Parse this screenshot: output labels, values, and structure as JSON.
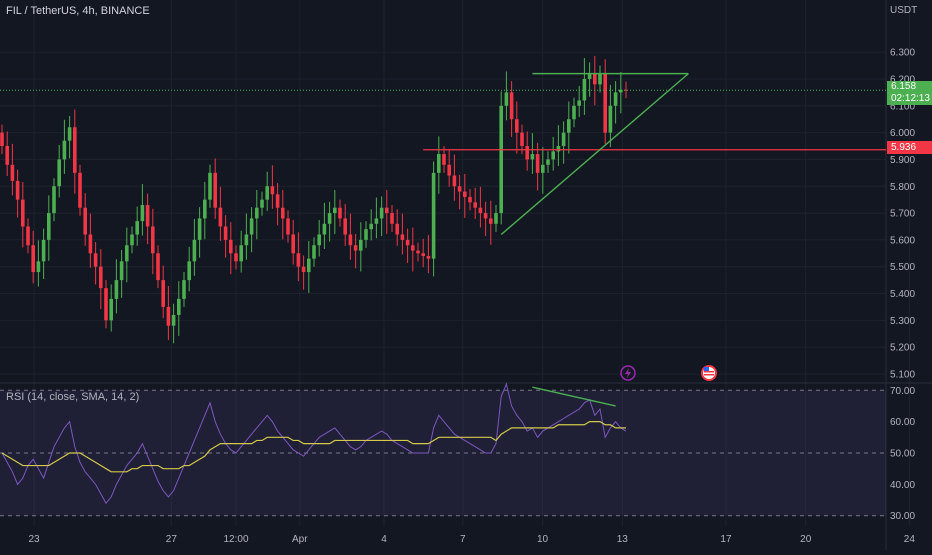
{
  "header": {
    "title": "FIL / TetherUS, 4h, BINANCE",
    "quote_unit": "USDT"
  },
  "price_tags": {
    "last_price": "6.158",
    "countdown": "02:12:13",
    "level_price": "5.936"
  },
  "event_icons": [
    {
      "icon": "lightning-icon",
      "color": "#9c27b0"
    },
    {
      "icon": "us-flag-icon",
      "color": "#f23645"
    }
  ],
  "colors": {
    "background": "#131722",
    "up": "#4caf50",
    "down": "#f23645",
    "rsi_line": "#7e57c2",
    "rsi_ma": "#d4c94a",
    "trendline": "#4caf50",
    "level_line": "#f23645"
  },
  "chart_data": [
    {
      "type": "candlestick",
      "title": "FIL / TetherUS, 4h, BINANCE",
      "ylim": [
        5.07,
        6.42
      ],
      "y_ticks": [
        "6.300",
        "6.200",
        "6.100",
        "6.000",
        "5.900",
        "5.800",
        "5.700",
        "5.600",
        "5.500",
        "5.400",
        "5.300",
        "5.200",
        "5.100"
      ],
      "x_ticks": [
        {
          "label": "23",
          "pos": 0.0
        },
        {
          "label": "27",
          "pos": 0.155
        },
        {
          "label": "12:00",
          "pos": 0.228
        },
        {
          "label": "Apr",
          "pos": 0.3
        },
        {
          "label": "4",
          "pos": 0.395
        },
        {
          "label": "7",
          "pos": 0.484
        },
        {
          "label": "10",
          "pos": 0.574
        },
        {
          "label": "13",
          "pos": 0.664
        },
        {
          "label": "17",
          "pos": 0.781
        },
        {
          "label": "20",
          "pos": 0.871
        },
        {
          "label": "24",
          "pos": 0.988
        }
      ],
      "closes": [
        5.95,
        5.88,
        5.82,
        5.75,
        5.65,
        5.58,
        5.48,
        5.52,
        5.6,
        5.7,
        5.8,
        5.9,
        5.97,
        6.02,
        5.85,
        5.72,
        5.62,
        5.55,
        5.5,
        5.42,
        5.3,
        5.38,
        5.45,
        5.52,
        5.58,
        5.62,
        5.67,
        5.73,
        5.65,
        5.55,
        5.45,
        5.35,
        5.28,
        5.32,
        5.38,
        5.45,
        5.52,
        5.6,
        5.68,
        5.75,
        5.85,
        5.72,
        5.65,
        5.6,
        5.55,
        5.52,
        5.58,
        5.62,
        5.68,
        5.72,
        5.75,
        5.8,
        5.77,
        5.72,
        5.68,
        5.62,
        5.55,
        5.5,
        5.48,
        5.53,
        5.58,
        5.62,
        5.66,
        5.7,
        5.72,
        5.68,
        5.62,
        5.58,
        5.56,
        5.6,
        5.64,
        5.66,
        5.68,
        5.72,
        5.7,
        5.66,
        5.62,
        5.6,
        5.58,
        5.56,
        5.55,
        5.54,
        5.53,
        5.85,
        5.92,
        5.88,
        5.84,
        5.8,
        5.78,
        5.76,
        5.74,
        5.72,
        5.7,
        5.68,
        5.66,
        5.7,
        6.1,
        6.15,
        6.05,
        6.0,
        5.95,
        5.9,
        5.92,
        5.85,
        5.88,
        5.9,
        5.93,
        5.95,
        6.0,
        6.05,
        6.1,
        6.12,
        6.2,
        6.22,
        6.18,
        6.22,
        6.0,
        6.1,
        6.15,
        6.16,
        6.158
      ],
      "last_price": 6.158,
      "horizontal_level": 5.936,
      "rsi": {
        "title": "RSI (14, close, SMA, 14, 2)",
        "ylim": [
          28,
          72
        ],
        "y_ticks": [
          "70.00",
          "60.00",
          "50.00",
          "40.00",
          "30.00"
        ],
        "band": [
          30,
          70
        ],
        "midline": 50,
        "values": [
          50,
          47,
          44,
          40,
          42,
          46,
          48,
          45,
          42,
          47,
          52,
          55,
          58,
          60,
          52,
          47,
          44,
          42,
          40,
          37,
          34,
          36,
          40,
          43,
          46,
          48,
          50,
          53,
          49,
          45,
          41,
          38,
          36,
          38,
          42,
          46,
          50,
          54,
          58,
          62,
          66,
          60,
          56,
          53,
          51,
          50,
          52,
          54,
          56,
          58,
          60,
          62,
          60,
          57,
          55,
          53,
          51,
          50,
          49,
          51,
          53,
          55,
          56,
          57,
          58,
          56,
          54,
          52,
          51,
          52,
          54,
          55,
          56,
          57,
          56,
          54,
          53,
          52,
          51,
          50,
          50,
          50,
          50,
          58,
          62,
          60,
          58,
          56,
          55,
          54,
          53,
          52,
          51,
          50,
          50,
          53,
          68,
          72,
          65,
          62,
          60,
          57,
          58,
          55,
          57,
          58,
          59,
          60,
          61,
          62,
          63,
          64,
          66,
          67,
          62,
          64,
          55,
          58,
          60,
          58,
          57
        ],
        "ma": [
          50,
          49,
          48,
          47,
          46,
          46,
          46,
          46,
          46,
          46,
          47,
          48,
          49,
          50,
          50,
          50,
          49,
          48,
          47,
          46,
          45,
          44,
          44,
          44,
          44,
          45,
          45,
          46,
          46,
          46,
          46,
          45,
          45,
          45,
          45,
          46,
          46,
          47,
          48,
          49,
          51,
          52,
          53,
          53,
          53,
          53,
          53,
          53,
          53,
          54,
          54,
          55,
          55,
          55,
          55,
          55,
          54,
          54,
          53,
          53,
          53,
          53,
          53,
          53,
          54,
          54,
          54,
          54,
          54,
          54,
          54,
          54,
          54,
          54,
          54,
          54,
          54,
          54,
          54,
          53,
          53,
          53,
          53,
          54,
          55,
          55,
          55,
          55,
          55,
          55,
          55,
          55,
          55,
          55,
          55,
          54,
          56,
          57,
          58,
          58,
          58,
          58,
          58,
          58,
          58,
          58,
          58,
          59,
          59,
          59,
          59,
          59,
          59,
          60,
          60,
          60,
          59,
          59,
          58,
          58,
          58
        ]
      },
      "annotations": {
        "support_trendline": [
          {
            "i": 96,
            "price": 5.62
          },
          {
            "i": 132,
            "price": 6.22
          }
        ],
        "top_line": [
          {
            "i": 102,
            "price": 6.22
          },
          {
            "i": 132,
            "price": 6.22
          }
        ],
        "rsi_divergence": [
          {
            "i": 102,
            "rsi": 71
          },
          {
            "i": 118,
            "rsi": 65
          }
        ]
      }
    }
  ]
}
